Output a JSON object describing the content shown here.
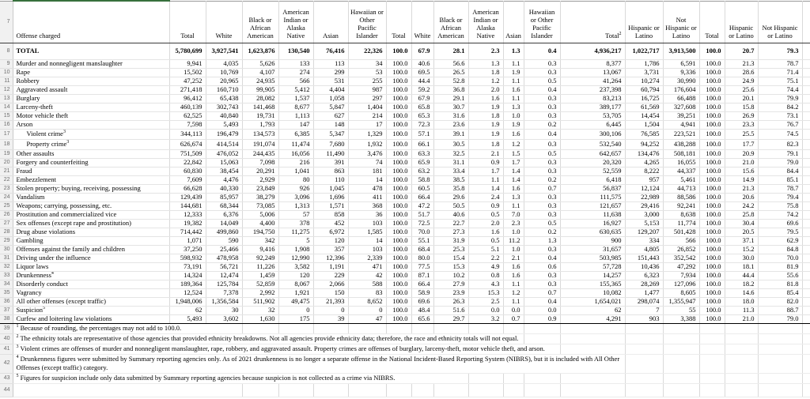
{
  "colors": {
    "accent_green": "#37703c",
    "gridline": "#d9d9d9",
    "gutter_bg": "#f1f1f1"
  },
  "header": {
    "row_num": "7",
    "offense": "Offense charged",
    "race": [
      "Total",
      "White",
      "Black or African American",
      "American Indian or Alaska Native",
      "Asian",
      "Hawaiian or Other Pacific Islander"
    ],
    "eth": {
      "total": "Total",
      "total_sup": "2",
      "hispanic": "Hispanic or Latino",
      "not_hispanic": "Not Hispanic or Latino"
    }
  },
  "rows": [
    {
      "num": "8",
      "label": "TOTAL",
      "bold": true,
      "v": [
        "5,780,699",
        "3,927,541",
        "1,623,876",
        "130,540",
        "76,416",
        "22,326",
        "100.0",
        "67.9",
        "28.1",
        "2.3",
        "1.3",
        "0.4",
        "4,936,217",
        "1,022,717",
        "3,913,500",
        "100.0",
        "20.7",
        "79.3"
      ]
    },
    {
      "num": "9",
      "label": "Murder and nonnegligent manslaughter",
      "v": [
        "9,941",
        "4,035",
        "5,626",
        "133",
        "113",
        "34",
        "100.0",
        "40.6",
        "56.6",
        "1.3",
        "1.1",
        "0.3",
        "8,377",
        "1,786",
        "6,591",
        "100.0",
        "21.3",
        "78.7"
      ]
    },
    {
      "num": "10",
      "label": "Rape",
      "v": [
        "15,502",
        "10,769",
        "4,107",
        "274",
        "299",
        "53",
        "100.0",
        "69.5",
        "26.5",
        "1.8",
        "1.9",
        "0.3",
        "13,067",
        "3,731",
        "9,336",
        "100.0",
        "28.6",
        "71.4"
      ]
    },
    {
      "num": "11",
      "label": "Robbery",
      "v": [
        "47,252",
        "20,965",
        "24,935",
        "566",
        "531",
        "255",
        "100.0",
        "44.4",
        "52.8",
        "1.2",
        "1.1",
        "0.5",
        "41,264",
        "10,274",
        "30,990",
        "100.0",
        "24.9",
        "75.1"
      ]
    },
    {
      "num": "12",
      "label": "Aggravated assault",
      "v": [
        "271,418",
        "160,710",
        "99,905",
        "5,412",
        "4,404",
        "987",
        "100.0",
        "59.2",
        "36.8",
        "2.0",
        "1.6",
        "0.4",
        "237,398",
        "60,794",
        "176,604",
        "100.0",
        "25.6",
        "74.4"
      ]
    },
    {
      "num": "13",
      "label": "Burglary",
      "v": [
        "96,412",
        "65,438",
        "28,082",
        "1,537",
        "1,058",
        "297",
        "100.0",
        "67.9",
        "29.1",
        "1.6",
        "1.1",
        "0.3",
        "83,213",
        "16,725",
        "66,488",
        "100.0",
        "20.1",
        "79.9"
      ]
    },
    {
      "num": "14",
      "label": "Larceny-theft",
      "v": [
        "460,139",
        "302,743",
        "141,468",
        "8,677",
        "5,847",
        "1,404",
        "100.0",
        "65.8",
        "30.7",
        "1.9",
        "1.3",
        "0.3",
        "389,177",
        "61,569",
        "327,608",
        "100.0",
        "15.8",
        "84.2"
      ]
    },
    {
      "num": "15",
      "label": "Motor vehicle theft",
      "v": [
        "62,525",
        "40,840",
        "19,731",
        "1,113",
        "627",
        "214",
        "100.0",
        "65.3",
        "31.6",
        "1.8",
        "1.0",
        "0.3",
        "53,705",
        "14,454",
        "39,251",
        "100.0",
        "26.9",
        "73.1"
      ]
    },
    {
      "num": "16",
      "label": "Arson",
      "v": [
        "7,598",
        "5,493",
        "1,793",
        "147",
        "148",
        "17",
        "100.0",
        "72.3",
        "23.6",
        "1.9",
        "1.9",
        "0.2",
        "6,445",
        "1,504",
        "4,941",
        "100.0",
        "23.3",
        "76.7"
      ]
    },
    {
      "num": "17",
      "label": "Violent crime",
      "sup": "3",
      "indent": true,
      "v": [
        "344,113",
        "196,479",
        "134,573",
        "6,385",
        "5,347",
        "1,329",
        "100.0",
        "57.1",
        "39.1",
        "1.9",
        "1.6",
        "0.4",
        "300,106",
        "76,585",
        "223,521",
        "100.0",
        "25.5",
        "74.5"
      ]
    },
    {
      "num": "18",
      "label": "Property crime",
      "sup": "3",
      "indent": true,
      "v": [
        "626,674",
        "414,514",
        "191,074",
        "11,474",
        "7,680",
        "1,932",
        "100.0",
        "66.1",
        "30.5",
        "1.8",
        "1.2",
        "0.3",
        "532,540",
        "94,252",
        "438,288",
        "100.0",
        "17.7",
        "82.3"
      ]
    },
    {
      "num": "19",
      "label": "Other assaults",
      "v": [
        "751,509",
        "476,052",
        "244,435",
        "16,056",
        "11,490",
        "3,476",
        "100.0",
        "63.3",
        "32.5",
        "2.1",
        "1.5",
        "0.5",
        "642,657",
        "134,476",
        "508,181",
        "100.0",
        "20.9",
        "79.1"
      ]
    },
    {
      "num": "20",
      "label": "Forgery and counterfeiting",
      "v": [
        "22,842",
        "15,063",
        "7,098",
        "216",
        "391",
        "74",
        "100.0",
        "65.9",
        "31.1",
        "0.9",
        "1.7",
        "0.3",
        "20,320",
        "4,265",
        "16,055",
        "100.0",
        "21.0",
        "79.0"
      ]
    },
    {
      "num": "21",
      "label": "Fraud",
      "v": [
        "60,830",
        "38,454",
        "20,291",
        "1,041",
        "863",
        "181",
        "100.0",
        "63.2",
        "33.4",
        "1.7",
        "1.4",
        "0.3",
        "52,559",
        "8,222",
        "44,337",
        "100.0",
        "15.6",
        "84.4"
      ]
    },
    {
      "num": "22",
      "label": "Embezzlement",
      "v": [
        "7,609",
        "4,476",
        "2,929",
        "80",
        "110",
        "14",
        "100.0",
        "58.8",
        "38.5",
        "1.1",
        "1.4",
        "0.2",
        "6,418",
        "957",
        "5,461",
        "100.0",
        "14.9",
        "85.1"
      ]
    },
    {
      "num": "23",
      "label": "Stolen property; buying, receiving, possessing",
      "v": [
        "66,628",
        "40,330",
        "23,849",
        "926",
        "1,045",
        "478",
        "100.0",
        "60.5",
        "35.8",
        "1.4",
        "1.6",
        "0.7",
        "56,837",
        "12,124",
        "44,713",
        "100.0",
        "21.3",
        "78.7"
      ]
    },
    {
      "num": "24",
      "label": "Vandalism",
      "v": [
        "129,439",
        "85,957",
        "38,279",
        "3,096",
        "1,696",
        "411",
        "100.0",
        "66.4",
        "29.6",
        "2.4",
        "1.3",
        "0.3",
        "111,575",
        "22,989",
        "88,586",
        "100.0",
        "20.6",
        "79.4"
      ]
    },
    {
      "num": "25",
      "label": "Weapons; carrying, possessing, etc.",
      "v": [
        "144,681",
        "68,344",
        "73,085",
        "1,313",
        "1,571",
        "368",
        "100.0",
        "47.2",
        "50.5",
        "0.9",
        "1.1",
        "0.3",
        "121,657",
        "29,416",
        "92,241",
        "100.0",
        "24.2",
        "75.8"
      ]
    },
    {
      "num": "26",
      "label": "Prostitution and commercialized vice",
      "v": [
        "12,333",
        "6,376",
        "5,006",
        "57",
        "858",
        "36",
        "100.0",
        "51.7",
        "40.6",
        "0.5",
        "7.0",
        "0.3",
        "11,638",
        "3,000",
        "8,638",
        "100.0",
        "25.8",
        "74.2"
      ]
    },
    {
      "num": "27",
      "label": "Sex offenses (except rape and prostitution)",
      "v": [
        "19,382",
        "14,049",
        "4,400",
        "378",
        "452",
        "103",
        "100.0",
        "72.5",
        "22.7",
        "2.0",
        "2.3",
        "0.5",
        "16,927",
        "5,153",
        "11,774",
        "100.0",
        "30.4",
        "69.6"
      ]
    },
    {
      "num": "28",
      "label": "Drug abuse violations",
      "v": [
        "714,442",
        "499,860",
        "194,750",
        "11,275",
        "6,972",
        "1,585",
        "100.0",
        "70.0",
        "27.3",
        "1.6",
        "1.0",
        "0.2",
        "630,635",
        "129,207",
        "501,428",
        "100.0",
        "20.5",
        "79.5"
      ]
    },
    {
      "num": "29",
      "label": "Gambling",
      "v": [
        "1,071",
        "590",
        "342",
        "5",
        "120",
        "14",
        "100.0",
        "55.1",
        "31.9",
        "0.5",
        "11.2",
        "1.3",
        "900",
        "334",
        "566",
        "100.0",
        "37.1",
        "62.9"
      ]
    },
    {
      "num": "30",
      "label": "Offenses against the family and children",
      "v": [
        "37,250",
        "25,466",
        "9,416",
        "1,908",
        "357",
        "103",
        "100.0",
        "68.4",
        "25.3",
        "5.1",
        "1.0",
        "0.3",
        "31,657",
        "4,805",
        "26,852",
        "100.0",
        "15.2",
        "84.8"
      ]
    },
    {
      "num": "31",
      "label": "Driving under the influence",
      "v": [
        "598,932",
        "478,958",
        "92,249",
        "12,990",
        "12,396",
        "2,339",
        "100.0",
        "80.0",
        "15.4",
        "2.2",
        "2.1",
        "0.4",
        "503,985",
        "151,443",
        "352,542",
        "100.0",
        "30.0",
        "70.0"
      ]
    },
    {
      "num": "32",
      "label": "Liquor laws",
      "v": [
        "73,191",
        "56,721",
        "11,226",
        "3,582",
        "1,191",
        "471",
        "100.0",
        "77.5",
        "15.3",
        "4.9",
        "1.6",
        "0.6",
        "57,728",
        "10,436",
        "47,292",
        "100.0",
        "18.1",
        "81.9"
      ]
    },
    {
      "num": "33",
      "label": "Drunkenness",
      "sup": "4",
      "v": [
        "14,324",
        "12,474",
        "1,459",
        "120",
        "229",
        "42",
        "100.0",
        "87.1",
        "10.2",
        "0.8",
        "1.6",
        "0.3",
        "14,257",
        "6,323",
        "7,934",
        "100.0",
        "44.4",
        "55.6"
      ]
    },
    {
      "num": "34",
      "label": "Disorderly conduct",
      "v": [
        "189,364",
        "125,784",
        "52,859",
        "8,067",
        "2,066",
        "588",
        "100.0",
        "66.4",
        "27.9",
        "4.3",
        "1.1",
        "0.3",
        "155,365",
        "28,269",
        "127,096",
        "100.0",
        "18.2",
        "81.8"
      ]
    },
    {
      "num": "35",
      "label": "Vagrancy",
      "v": [
        "12,524",
        "7,378",
        "2,992",
        "1,921",
        "150",
        "83",
        "100.0",
        "58.9",
        "23.9",
        "15.3",
        "1.2",
        "0.7",
        "10,082",
        "1,477",
        "8,605",
        "100.0",
        "14.6",
        "85.4"
      ]
    },
    {
      "num": "36",
      "label": "All other offenses (except traffic)",
      "v": [
        "1,948,006",
        "1,356,584",
        "511,902",
        "49,475",
        "21,393",
        "8,652",
        "100.0",
        "69.6",
        "26.3",
        "2.5",
        "1.1",
        "0.4",
        "1,654,021",
        "298,074",
        "1,355,947",
        "100.0",
        "18.0",
        "82.0"
      ]
    },
    {
      "num": "37",
      "label": "Suspicion",
      "sup": "5",
      "v": [
        "62",
        "30",
        "32",
        "0",
        "0",
        "0",
        "100.0",
        "48.4",
        "51.6",
        "0.0",
        "0.0",
        "0.0",
        "62",
        "7",
        "55",
        "100.0",
        "11.3",
        "88.7"
      ]
    },
    {
      "num": "38",
      "label": "Curfew and loitering law violations",
      "v": [
        "5,493",
        "3,602",
        "1,630",
        "175",
        "39",
        "47",
        "100.0",
        "65.6",
        "29.7",
        "3.2",
        "0.7",
        "0.9",
        "4,291",
        "903",
        "3,388",
        "100.0",
        "21.0",
        "79.0"
      ]
    }
  ],
  "footnotes": [
    {
      "num": "39",
      "sup": "1",
      "text": "Because of rounding, the percentages may not add to 100.0."
    },
    {
      "num": "40",
      "sup": "2",
      "text": "The ethnicity totals are representative of those agencies that provided ethnicity breakdowns. Not all agencies provide ethnicity data; therefore, the race and ethnicity totals will not equal."
    },
    {
      "num": "41",
      "sup": "3",
      "text": "Violent crimes are offenses of murder and nonnegligent manslaughter, rape, robbery, and aggravated assault. Property crimes are offenses of burglary, larceny-theft, motor vehicle theft, and arson."
    },
    {
      "num": "42",
      "sup": "4",
      "text": "Drunkenness figures were submitted by Summary reporting agencies only. As of 2021 drunkenness is no longer a separate offense in the National Incident-Based Reporting System (NIBRS), but it is included with All Other Offenses (except traffic) category."
    },
    {
      "num": "43",
      "sup": "5",
      "text": "Figures for suspicion include only data submitted by Summary reporting agencies because suspicion is not collected as a crime via NIBRS."
    },
    {
      "num": "44",
      "sup": "",
      "text": ""
    }
  ]
}
